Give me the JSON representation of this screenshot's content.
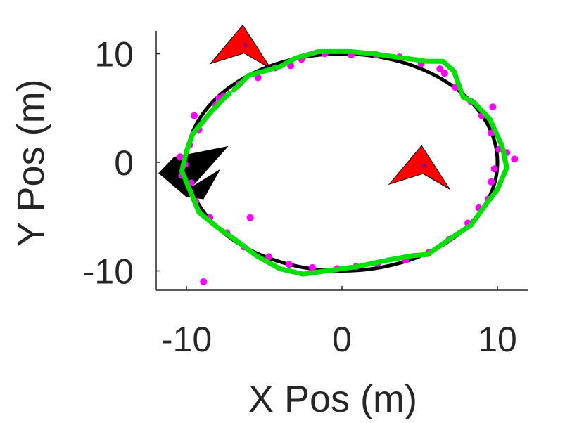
{
  "chart_data": {
    "type": "scatter",
    "xlabel": "X Pos (m)",
    "ylabel": "Y Pos (m)",
    "xlim": [
      -12,
      12
    ],
    "ylim": [
      -12,
      12
    ],
    "xticks": [
      "-10",
      "0",
      "10"
    ],
    "yticks": [
      "10",
      "0",
      "-10"
    ],
    "grid": false,
    "series": [
      {
        "kind": "true-path",
        "color": "#000000",
        "center": [
          0,
          0
        ],
        "radii": [
          10,
          10
        ]
      },
      {
        "kind": "measurements",
        "color": "#ff00ff",
        "points": [
          [
            -8.9,
            -11.0
          ],
          [
            -5.9,
            -5.1
          ],
          [
            -9.5,
            4.3
          ],
          [
            -7.6,
            6.1
          ],
          [
            -6.6,
            7.2
          ],
          [
            -3.3,
            8.9
          ],
          [
            -2.6,
            9.5
          ],
          [
            -1.1,
            10.0
          ],
          [
            0.6,
            9.9
          ],
          [
            2.2,
            9.9
          ],
          [
            3.7,
            9.7
          ],
          [
            5.1,
            9.1
          ],
          [
            6.3,
            8.6
          ],
          [
            7.3,
            6.9
          ],
          [
            8.3,
            5.6
          ],
          [
            9.0,
            4.3
          ],
          [
            9.6,
            2.7
          ],
          [
            10.1,
            1.2
          ],
          [
            10.6,
            0.9
          ],
          [
            11.1,
            0.3
          ],
          [
            9.8,
            -0.6
          ],
          [
            9.6,
            -1.8
          ],
          [
            9.4,
            -3.4
          ],
          [
            8.8,
            -4.2
          ],
          [
            8.1,
            -5.6
          ],
          [
            6.9,
            -7.1
          ],
          [
            5.6,
            -8.3
          ],
          [
            4.1,
            -9.0
          ],
          [
            2.3,
            -9.3
          ],
          [
            0.9,
            -9.6
          ],
          [
            -0.3,
            -9.8
          ],
          [
            -1.9,
            -9.7
          ],
          [
            -3.4,
            -9.4
          ],
          [
            -4.7,
            -8.7
          ],
          [
            -6.3,
            -7.8
          ],
          [
            -7.4,
            -6.5
          ],
          [
            -8.5,
            -5.1
          ],
          [
            -9.4,
            -3.6
          ],
          [
            -9.7,
            -1.9
          ],
          [
            -10.1,
            -0.2
          ],
          [
            -9.8,
            1.6
          ],
          [
            -9.2,
            3.0
          ],
          [
            -8.1,
            5.3
          ],
          [
            -5.4,
            7.8
          ],
          [
            -4.3,
            8.7
          ],
          [
            -7.9,
            5.9
          ],
          [
            -10.4,
            0.5
          ],
          [
            -10.3,
            -1.2
          ],
          [
            9.7,
            5.1
          ],
          [
            6.6,
            8.2
          ]
        ]
      },
      {
        "kind": "estimated-path",
        "color": "#00e000",
        "points": [
          [
            -7.0,
            6.6
          ],
          [
            -6.0,
            8.0
          ],
          [
            -4.0,
            8.8
          ],
          [
            -3.0,
            9.6
          ],
          [
            -1.5,
            10.2
          ],
          [
            0.5,
            10.2
          ],
          [
            2.0,
            10.0
          ],
          [
            4.0,
            9.6
          ],
          [
            5.5,
            9.3
          ],
          [
            6.5,
            9.3
          ],
          [
            7.2,
            8.4
          ],
          [
            7.8,
            6.0
          ],
          [
            8.5,
            5.5
          ],
          [
            9.5,
            4.0
          ],
          [
            10.3,
            1.5
          ],
          [
            10.6,
            -0.5
          ],
          [
            10.0,
            -2.5
          ],
          [
            9.2,
            -4.0
          ],
          [
            8.3,
            -5.8
          ],
          [
            7.0,
            -7.0
          ],
          [
            5.5,
            -8.5
          ],
          [
            4.5,
            -8.6
          ],
          [
            3.0,
            -9.0
          ],
          [
            1.0,
            -9.6
          ],
          [
            -1.0,
            -10.0
          ],
          [
            -2.5,
            -10.3
          ],
          [
            -4.0,
            -9.8
          ],
          [
            -5.5,
            -8.6
          ],
          [
            -6.8,
            -7.2
          ],
          [
            -8.0,
            -6.0
          ],
          [
            -9.2,
            -4.6
          ],
          [
            -9.8,
            -2.5
          ],
          [
            -10.3,
            -0.8
          ],
          [
            -10.0,
            1.0
          ],
          [
            -9.6,
            2.6
          ],
          [
            -8.5,
            4.5
          ],
          [
            -7.8,
            5.6
          ],
          [
            -7.2,
            6.4
          ]
        ]
      },
      {
        "kind": "sensor-heading",
        "color": "#ff0000",
        "points": [
          [
            -6.2,
            10.7
          ],
          [
            5.3,
            -0.4
          ]
        ]
      }
    ]
  }
}
